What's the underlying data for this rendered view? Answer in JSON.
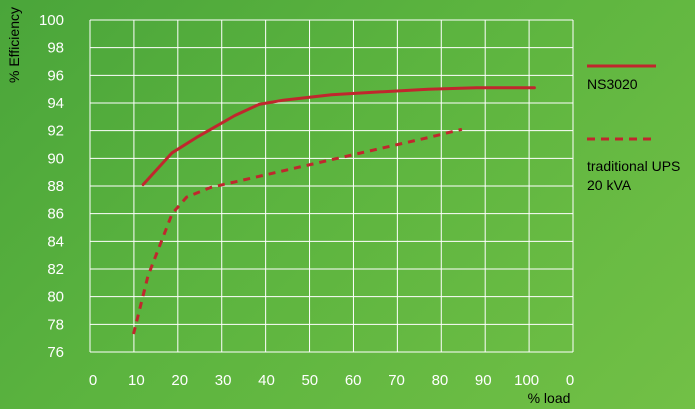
{
  "chart_data": {
    "type": "line",
    "xlabel": "% load",
    "ylabel": "% Efficiency",
    "xlim": [
      0,
      100
    ],
    "ylim": [
      76,
      100
    ],
    "x_ticks": [
      "0",
      "10",
      "20",
      "30",
      "40",
      "50",
      "60",
      "70",
      "80",
      "90",
      "100",
      "0"
    ],
    "y_ticks": [
      "76",
      "78",
      "80",
      "82",
      "84",
      "86",
      "88",
      "90",
      "92",
      "94",
      "96",
      "98",
      "100"
    ],
    "grid": true,
    "legend_position": "right",
    "series": [
      {
        "name": "NS3020",
        "style": "solid",
        "color": "#c0272d",
        "points": [
          [
            11,
            88.1
          ],
          [
            17,
            90.4
          ],
          [
            22,
            91.5
          ],
          [
            30,
            93.1
          ],
          [
            35,
            93.9
          ],
          [
            40,
            94.2
          ],
          [
            50,
            94.6
          ],
          [
            60,
            94.8
          ],
          [
            70,
            95.0
          ],
          [
            80,
            95.1
          ],
          [
            92,
            95.1
          ]
        ]
      },
      {
        "name": "traditional UPS 20 kVA",
        "name_lines": [
          "traditional UPS",
          "20 kVA"
        ],
        "style": "dashed",
        "color": "#c0272d",
        "points": [
          [
            9,
            77.3
          ],
          [
            12,
            81.5
          ],
          [
            17,
            86.0
          ],
          [
            20,
            87.2
          ],
          [
            25,
            87.9
          ],
          [
            30,
            88.3
          ],
          [
            40,
            89.1
          ],
          [
            50,
            89.9
          ],
          [
            60,
            90.7
          ],
          [
            70,
            91.5
          ],
          [
            77,
            92.1
          ]
        ]
      }
    ]
  }
}
